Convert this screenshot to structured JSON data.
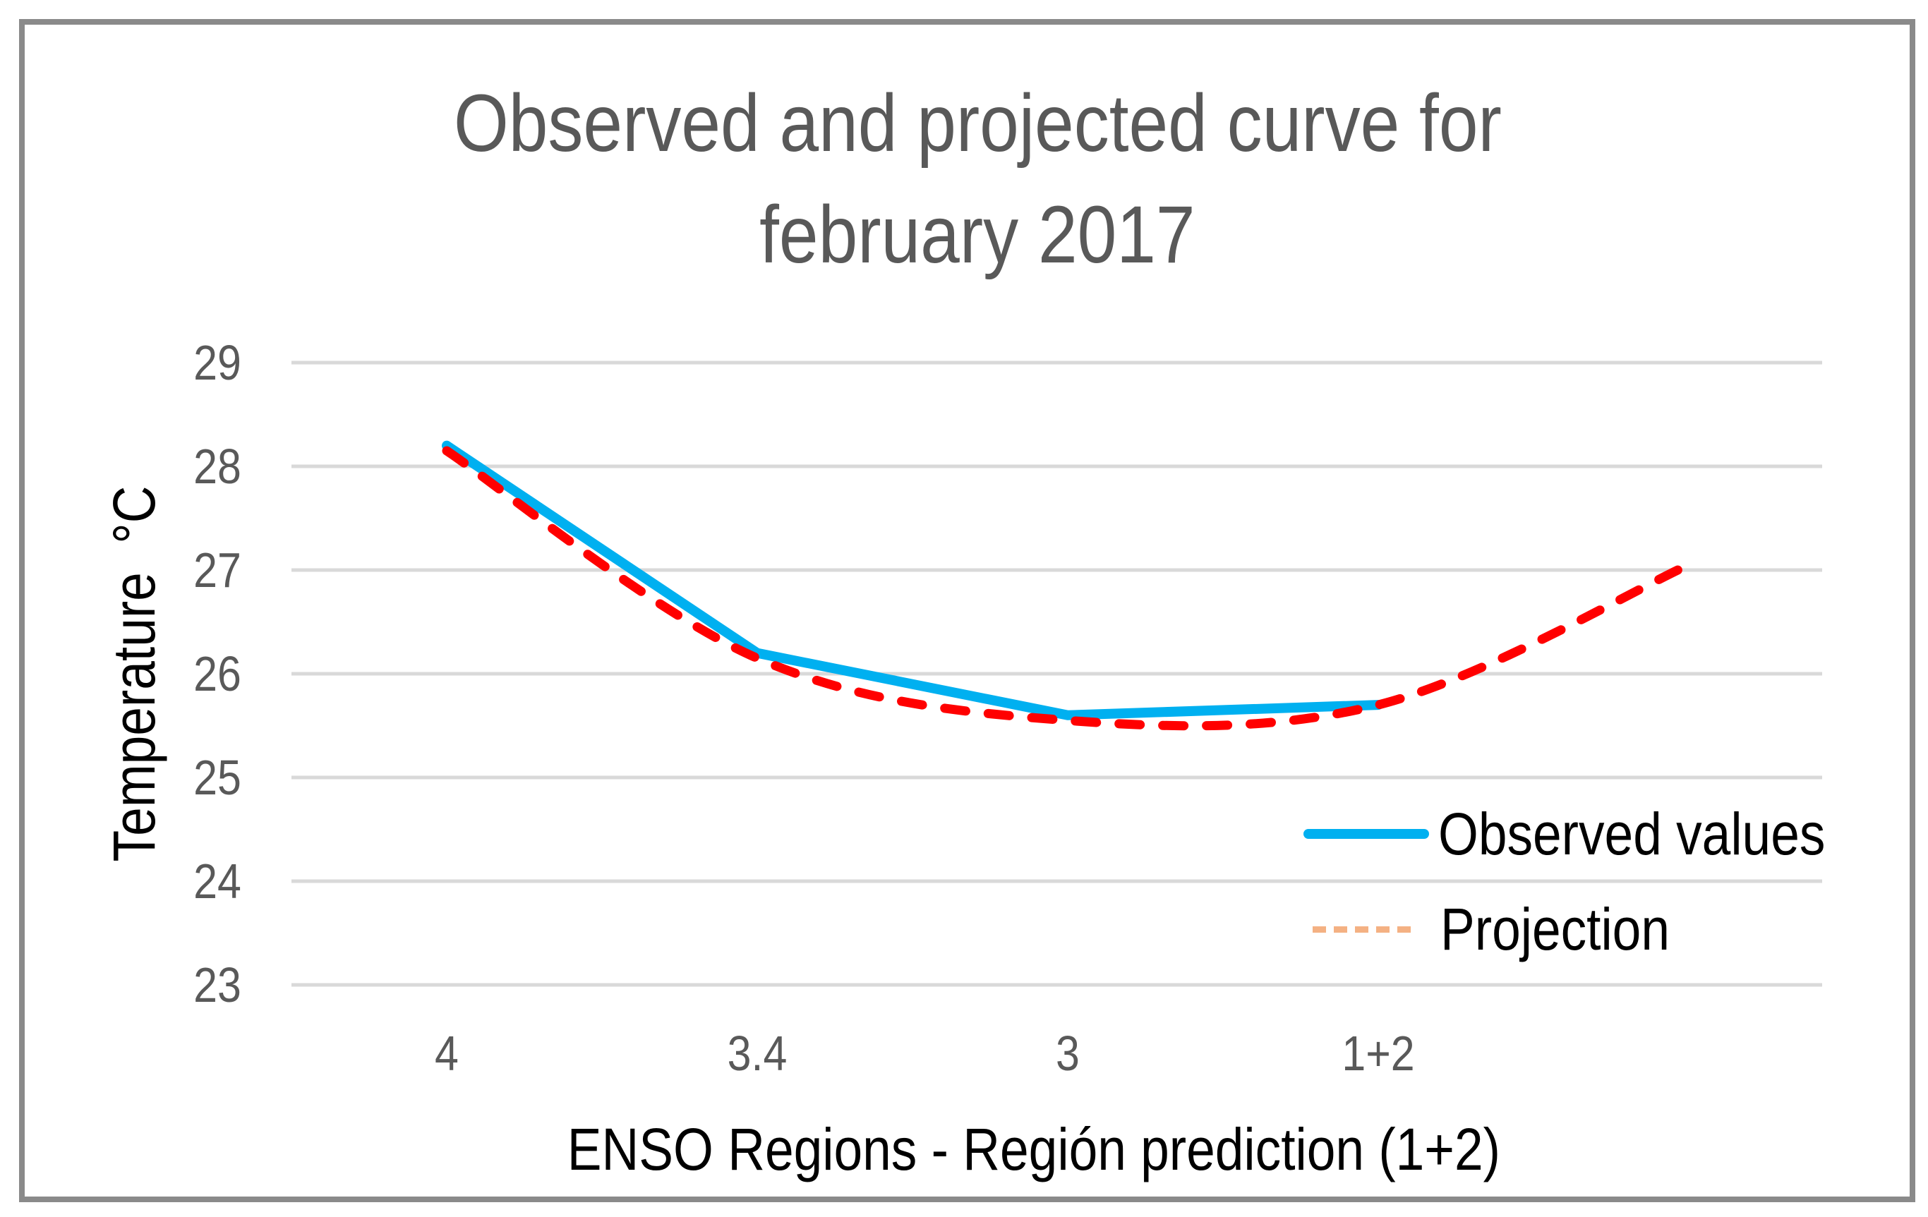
{
  "title": {
    "line1": "Observed and projected curve for",
    "line2": "february 2017",
    "color": "#595959"
  },
  "y_axis": {
    "title": "Temperature  °C",
    "ticks": [
      "29",
      "28",
      "27",
      "26",
      "25",
      "24",
      "23"
    ],
    "tick_color": "#595959"
  },
  "x_axis": {
    "title": "ENSO Regions - Región prediction (1+2)",
    "ticks": [
      "4",
      "3.4",
      "3",
      "1+2"
    ],
    "tick_color": "#595959"
  },
  "legend": {
    "items": [
      {
        "label": "Observed values",
        "style": "solid",
        "swatch_color": "#00B0F0"
      },
      {
        "label": "Projection",
        "style": "dashed",
        "swatch_color": "#F4B183"
      }
    ]
  },
  "chart_data": {
    "type": "line",
    "title": "Observed and projected curve for february 2017",
    "categories": [
      "4",
      "3.4",
      "3",
      "1+2",
      ""
    ],
    "series": [
      {
        "name": "Observed values",
        "color": "#00B0F0",
        "line_style": "solid",
        "smooth": false,
        "values": [
          28.2,
          26.2,
          25.6,
          25.7,
          null
        ]
      },
      {
        "name": "Projection",
        "color": "#FF0000",
        "legend_swatch_color": "#F4B183",
        "line_style": "dashed",
        "smooth": true,
        "values": [
          28.15,
          26.15,
          25.55,
          25.7,
          27.05
        ]
      }
    ],
    "xlabel": "ENSO Regions - Región prediction (1+2)",
    "ylabel": "Temperature °C",
    "y_ticks": [
      29,
      28,
      27,
      26,
      25,
      24,
      23
    ],
    "ylim": [
      23,
      29
    ],
    "grid": "horizontal",
    "grid_color": "#D9D9D9",
    "legend_position": "inside-right",
    "frame_border_color": "#8a8a8a"
  }
}
